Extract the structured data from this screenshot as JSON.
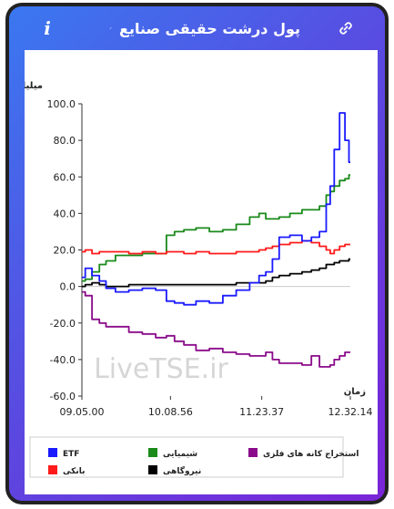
{
  "header": {
    "title": "پول درشت حقیقی صنایع",
    "info_label": "i"
  },
  "chart_data": {
    "type": "line",
    "ylabel": "میلیارد تومان",
    "xlabel": "زمان",
    "ylim": [
      -60,
      100
    ],
    "yticks": [
      "100.0",
      "80.0",
      "60.0",
      "40.0",
      "20.0",
      "0.0",
      "-20.0",
      "-40.0",
      "-60.0"
    ],
    "xticks": [
      "09.05.00",
      "10.08.56",
      "11.23.37",
      "12.32.14"
    ],
    "xtick_positions": [
      0,
      0.33,
      0.67,
      1
    ],
    "grid": false,
    "watermark": "LiveTSE.ir",
    "legend_position": "bottom",
    "x": [
      0,
      0.025,
      0.05,
      0.08,
      0.1,
      0.15,
      0.2,
      0.25,
      0.3,
      0.33,
      0.36,
      0.4,
      0.45,
      0.5,
      0.55,
      0.6,
      0.65,
      0.67,
      0.7,
      0.72,
      0.75,
      0.8,
      0.84,
      0.87,
      0.9,
      0.92,
      0.93,
      0.95,
      0.97,
      0.99,
      1
    ],
    "series": [
      {
        "name": "ETF",
        "color": "#1a1aff",
        "values": [
          5,
          10,
          6,
          3,
          -1,
          -3,
          -2,
          -1,
          -2,
          -8,
          -9,
          -10,
          -8,
          -9,
          -5,
          -2,
          2,
          6,
          8,
          15,
          27,
          28,
          25,
          27,
          30,
          45,
          55,
          75,
          95,
          80,
          68
        ]
      },
      {
        "name": "شیمیایی",
        "color": "#1a8a1a",
        "values": [
          3,
          4,
          8,
          12,
          14,
          17,
          17,
          18,
          18,
          28,
          30,
          31,
          32,
          30,
          31,
          34,
          38,
          40,
          37,
          37,
          38,
          40,
          42,
          42,
          44,
          50,
          52,
          55,
          58,
          59,
          61
        ]
      },
      {
        "name": "استخراج کانه های فلزی",
        "color": "#8a0a8a",
        "values": [
          -3,
          -5,
          -18,
          -20,
          -22,
          -22,
          -25,
          -26,
          -28,
          -27,
          -30,
          -32,
          -35,
          -34,
          -36,
          -37,
          -38,
          -38,
          -36,
          -40,
          -42,
          -42,
          -43,
          -38,
          -44,
          -44,
          -43,
          -40,
          -38,
          -36,
          -36
        ]
      },
      {
        "name": "بانکی",
        "color": "#ff1a1a",
        "values": [
          19,
          20,
          18,
          19,
          19,
          19,
          18,
          19,
          18,
          19,
          19,
          18,
          19,
          18,
          18,
          19,
          19,
          20,
          21,
          22,
          23,
          24,
          25,
          24,
          22,
          20,
          18,
          20,
          22,
          23,
          23
        ]
      },
      {
        "name": "نیروگاهی",
        "color": "#000000",
        "values": [
          0,
          1,
          2,
          1,
          0,
          0,
          1,
          1,
          1,
          1,
          1,
          1,
          1,
          1,
          1,
          2,
          2,
          2,
          3,
          5,
          6,
          7,
          8,
          9,
          10,
          12,
          12,
          13,
          14,
          14,
          15
        ]
      }
    ]
  }
}
